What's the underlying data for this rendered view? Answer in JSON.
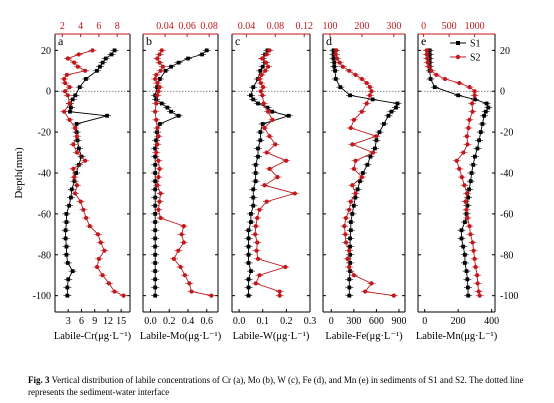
{
  "figure": {
    "y_axis_label": "Depth(mm)",
    "y_range": [
      -108,
      28
    ],
    "y_ticks": [
      20,
      0,
      -20,
      -40,
      -60,
      -80,
      -100
    ],
    "legend": {
      "placement": "top-right of panel e",
      "entries": [
        "S1",
        "S2"
      ]
    },
    "colors": {
      "S1": "#000000",
      "S2": "#c0181c",
      "top_axis": "#c0181c"
    }
  },
  "chart_data": [
    {
      "type": "line",
      "panel_letter": "a",
      "xlabel": "Labile-Cr(μg·L⁻¹)",
      "bottom_axis": {
        "range": [
          0,
          17
        ],
        "ticks": [
          3,
          6,
          9,
          12,
          15
        ],
        "tick_labels": [
          "3",
          "6",
          "9",
          "12",
          "15"
        ]
      },
      "top_axis": {
        "range": [
          1.2,
          9.4
        ],
        "ticks": [
          2,
          4,
          6,
          8
        ],
        "tick_labels": [
          "2",
          "4",
          "6",
          "8"
        ]
      },
      "series": [
        {
          "name": "S1",
          "axis": "bottom",
          "x": [
            13.5,
            12.8,
            11.5,
            10.8,
            10.2,
            9.5,
            7.0,
            5.6,
            4.6,
            4.0,
            3.4,
            3.6,
            3.4,
            11.8,
            4.9,
            4.9,
            5.1,
            5.4,
            6.0,
            5.4,
            4.8,
            4.4,
            3.8,
            3.6,
            3.2,
            2.6,
            2.6,
            2.4,
            2.4,
            2.6,
            2.6,
            2.9,
            4.0,
            3.0,
            2.8,
            2.8
          ],
          "y": [
            20,
            18,
            16,
            14,
            12,
            10,
            6,
            2,
            -2,
            -4,
            -6,
            -8,
            -10,
            -12,
            -16,
            -20,
            -24,
            -28,
            -32,
            -36,
            -40,
            -44,
            -48,
            -52,
            -56,
            -60,
            -64,
            -68,
            -72,
            -76,
            -80,
            -84,
            -88,
            -92,
            -96,
            -100
          ]
        },
        {
          "name": "S2",
          "axis": "top",
          "x": [
            5.3,
            3.8,
            2.6,
            3.3,
            3.7,
            4.5,
            2.5,
            2.2,
            2.3,
            2.8,
            2.3,
            2.6,
            2.8,
            2.2,
            2.8,
            3.4,
            3.6,
            3.2,
            3.6,
            4.5,
            3.2,
            3.3,
            3.6,
            3.4,
            4.0,
            4.3,
            4.6,
            5.0,
            5.9,
            6.2,
            6.6,
            6.0,
            5.8,
            6.4,
            7.1,
            7.7,
            8.7
          ],
          "y": [
            20,
            18,
            16,
            14,
            12,
            10,
            8,
            6,
            4,
            2,
            0,
            -2,
            -6,
            -10,
            -14,
            -18,
            -22,
            -26,
            -30,
            -34,
            -38,
            -42,
            -46,
            -50,
            -54,
            -58,
            -62,
            -66,
            -70,
            -74,
            -78,
            -82,
            -86,
            -90,
            -94,
            -98,
            -100
          ]
        }
      ]
    },
    {
      "type": "line",
      "panel_letter": "b",
      "xlabel": "Labile-Mo(μg·L⁻¹)",
      "bottom_axis": {
        "range": [
          -0.08,
          0.72
        ],
        "ticks": [
          0.0,
          0.2,
          0.4,
          0.6
        ],
        "tick_labels": [
          "0.0",
          "0.2",
          "0.4",
          "0.6"
        ]
      },
      "top_axis": {
        "range": [
          0.02,
          0.088
        ],
        "ticks": [
          0.04,
          0.06,
          0.08
        ],
        "tick_labels": [
          "0.04",
          "0.06",
          "0.08"
        ]
      },
      "series": [
        {
          "name": "S1",
          "axis": "bottom",
          "x": [
            0.6,
            0.55,
            0.4,
            0.3,
            0.22,
            0.16,
            0.1,
            0.07,
            0.05,
            0.06,
            0.12,
            0.18,
            0.22,
            0.3,
            0.1,
            0.07,
            0.06,
            0.05,
            0.05,
            0.05,
            0.05,
            0.05,
            0.05,
            0.05,
            0.05,
            0.05,
            0.05,
            0.05,
            0.05,
            0.05,
            0.05,
            0.05,
            0.05,
            0.05,
            0.05,
            0.05
          ],
          "y": [
            20,
            18,
            16,
            14,
            12,
            10,
            6,
            2,
            -2,
            -4,
            -6,
            -8,
            -10,
            -12,
            -16,
            -20,
            -24,
            -28,
            -32,
            -36,
            -40,
            -44,
            -48,
            -52,
            -56,
            -60,
            -64,
            -68,
            -72,
            -76,
            -80,
            -84,
            -88,
            -92,
            -96,
            -100
          ]
        },
        {
          "name": "S2",
          "axis": "top",
          "x": [
            0.037,
            0.035,
            0.033,
            0.035,
            0.038,
            0.036,
            0.032,
            0.031,
            0.033,
            0.035,
            0.034,
            0.033,
            0.032,
            0.031,
            0.032,
            0.033,
            0.034,
            0.033,
            0.032,
            0.034,
            0.035,
            0.034,
            0.033,
            0.036,
            0.035,
            0.034,
            0.036,
            0.057,
            0.055,
            0.057,
            0.052,
            0.048,
            0.054,
            0.058,
            0.062,
            0.064,
            0.082
          ],
          "y": [
            20,
            18,
            16,
            14,
            12,
            10,
            8,
            6,
            4,
            2,
            0,
            -2,
            -6,
            -10,
            -14,
            -18,
            -22,
            -26,
            -30,
            -34,
            -38,
            -42,
            -46,
            -50,
            -54,
            -58,
            -62,
            -66,
            -70,
            -74,
            -78,
            -82,
            -86,
            -90,
            -94,
            -98,
            -100
          ]
        }
      ]
    },
    {
      "type": "line",
      "panel_letter": "c",
      "xlabel": "Labile-W(μg·L⁻¹)",
      "bottom_axis": {
        "range": [
          -0.03,
          0.3
        ],
        "ticks": [
          0.0,
          0.1,
          0.2,
          0.3
        ],
        "tick_labels": [
          "0.0",
          "0.1",
          "0.2",
          "0.3"
        ]
      },
      "top_axis": {
        "range": [
          0.02,
          0.128
        ],
        "ticks": [
          0.04,
          0.08,
          0.12
        ],
        "tick_labels": [
          "0.04",
          "0.08",
          "0.12"
        ]
      },
      "series": [
        {
          "name": "S1",
          "axis": "bottom",
          "x": [
            0.12,
            0.11,
            0.1,
            0.11,
            0.1,
            0.09,
            0.08,
            0.06,
            0.05,
            0.06,
            0.08,
            0.12,
            0.14,
            0.21,
            0.1,
            0.09,
            0.09,
            0.08,
            0.08,
            0.07,
            0.07,
            0.07,
            0.06,
            0.06,
            0.06,
            0.05,
            0.05,
            0.04,
            0.04,
            0.04,
            0.04,
            0.04,
            0.05,
            0.04,
            0.04,
            0.04
          ],
          "y": [
            20,
            18,
            16,
            14,
            12,
            10,
            6,
            2,
            -2,
            -4,
            -6,
            -8,
            -10,
            -12,
            -16,
            -20,
            -24,
            -28,
            -32,
            -36,
            -40,
            -44,
            -48,
            -52,
            -56,
            -60,
            -64,
            -68,
            -72,
            -76,
            -80,
            -84,
            -88,
            -92,
            -96,
            -100
          ]
        },
        {
          "name": "S2",
          "axis": "top",
          "x": [
            0.072,
            0.068,
            0.062,
            0.067,
            0.07,
            0.066,
            0.061,
            0.058,
            0.06,
            0.063,
            0.06,
            0.062,
            0.064,
            0.07,
            0.076,
            0.065,
            0.072,
            0.08,
            0.068,
            0.095,
            0.072,
            0.083,
            0.065,
            0.107,
            0.068,
            0.058,
            0.055,
            0.053,
            0.052,
            0.055,
            0.054,
            0.056,
            0.094,
            0.058,
            0.053,
            0.086,
            0.086
          ],
          "y": [
            20,
            18,
            16,
            14,
            12,
            10,
            8,
            6,
            4,
            2,
            0,
            -2,
            -6,
            -10,
            -14,
            -18,
            -22,
            -26,
            -30,
            -34,
            -38,
            -42,
            -46,
            -50,
            -54,
            -58,
            -62,
            -66,
            -70,
            -74,
            -78,
            -82,
            -86,
            -90,
            -94,
            -98,
            -100
          ]
        }
      ]
    },
    {
      "type": "line",
      "panel_letter": "d",
      "xlabel": "Labile-Fe(μg·L⁻¹)",
      "bottom_axis": {
        "range": [
          -110,
          980
        ],
        "ticks": [
          0,
          300,
          600,
          900
        ],
        "tick_labels": [
          "0",
          "300",
          "600",
          "900"
        ]
      },
      "top_axis": {
        "range": [
          78,
          335
        ],
        "ticks": [
          100,
          200,
          300
        ],
        "tick_labels": [
          "100",
          "200",
          "300"
        ]
      },
      "series": [
        {
          "name": "S1",
          "axis": "bottom",
          "x": [
            30,
            30,
            30,
            40,
            40,
            50,
            60,
            120,
            250,
            550,
            880,
            860,
            800,
            760,
            700,
            640,
            600,
            580,
            520,
            480,
            420,
            380,
            350,
            320,
            300,
            280,
            260,
            260,
            250,
            250,
            250,
            250,
            250,
            240,
            240,
            240
          ],
          "y": [
            20,
            18,
            16,
            14,
            12,
            10,
            6,
            2,
            -2,
            -4,
            -6,
            -8,
            -10,
            -12,
            -16,
            -20,
            -24,
            -28,
            -32,
            -36,
            -40,
            -44,
            -48,
            -52,
            -56,
            -60,
            -64,
            -68,
            -72,
            -76,
            -80,
            -84,
            -88,
            -92,
            -96,
            -100
          ]
        },
        {
          "name": "S2",
          "axis": "top",
          "x": [
            120,
            118,
            122,
            130,
            140,
            160,
            180,
            200,
            215,
            225,
            230,
            225,
            215,
            200,
            175,
            165,
            245,
            170,
            235,
            180,
            175,
            200,
            170,
            180,
            165,
            160,
            150,
            145,
            148,
            150,
            160,
            155,
            160,
            175,
            230,
            210,
            300
          ],
          "y": [
            20,
            18,
            16,
            14,
            12,
            10,
            8,
            6,
            4,
            2,
            0,
            -2,
            -6,
            -10,
            -14,
            -18,
            -22,
            -26,
            -30,
            -34,
            -38,
            -42,
            -46,
            -50,
            -54,
            -58,
            -62,
            -66,
            -70,
            -74,
            -78,
            -82,
            -86,
            -90,
            -94,
            -98,
            -100
          ]
        }
      ]
    },
    {
      "type": "line",
      "panel_letter": "e",
      "xlabel": "Labile-Mn(μg·L⁻¹)",
      "bottom_axis": {
        "range": [
          -40,
          420
        ],
        "ticks": [
          0,
          200,
          400
        ],
        "tick_labels": [
          "0",
          "200",
          "400"
        ]
      },
      "top_axis": {
        "range": [
          -110,
          1400
        ],
        "ticks": [
          0,
          500,
          1000
        ],
        "tick_labels": [
          "0",
          "500",
          "1000"
        ]
      },
      "series": [
        {
          "name": "S1",
          "axis": "bottom",
          "x": [
            30,
            30,
            30,
            30,
            30,
            30,
            35,
            60,
            200,
            300,
            370,
            380,
            365,
            355,
            345,
            335,
            325,
            315,
            300,
            290,
            280,
            275,
            265,
            260,
            255,
            250,
            240,
            220,
            220,
            230,
            240,
            240,
            250,
            255,
            258,
            260
          ],
          "y": [
            20,
            18,
            16,
            14,
            12,
            10,
            6,
            2,
            -2,
            -4,
            -6,
            -8,
            -10,
            -12,
            -16,
            -20,
            -24,
            -28,
            -32,
            -36,
            -40,
            -44,
            -48,
            -52,
            -56,
            -60,
            -64,
            -68,
            -72,
            -76,
            -80,
            -84,
            -88,
            -92,
            -96,
            -100
          ]
        },
        {
          "name": "S2",
          "axis": "top",
          "x": [
            60,
            60,
            70,
            80,
            100,
            150,
            250,
            420,
            700,
            900,
            1000,
            1000,
            950,
            960,
            900,
            880,
            850,
            860,
            780,
            650,
            700,
            750,
            800,
            850,
            820,
            840,
            860,
            900,
            920,
            960,
            980,
            1000,
            1020,
            1050,
            1060,
            1080,
            1100
          ],
          "y": [
            20,
            18,
            16,
            14,
            12,
            10,
            8,
            6,
            4,
            2,
            0,
            -2,
            -6,
            -10,
            -14,
            -18,
            -22,
            -26,
            -30,
            -34,
            -38,
            -42,
            -46,
            -50,
            -54,
            -58,
            -62,
            -66,
            -70,
            -74,
            -78,
            -82,
            -86,
            -90,
            -94,
            -98,
            -100
          ]
        }
      ]
    }
  ],
  "caption": {
    "label": "Fig. 3",
    "text": "Vertical distribution of labile concentrations of Cr (a), Mo (b), W (c), Fe (d), and Mn (e) in sediments of S1 and S2. The dotted line represents the sediment-water interface"
  }
}
